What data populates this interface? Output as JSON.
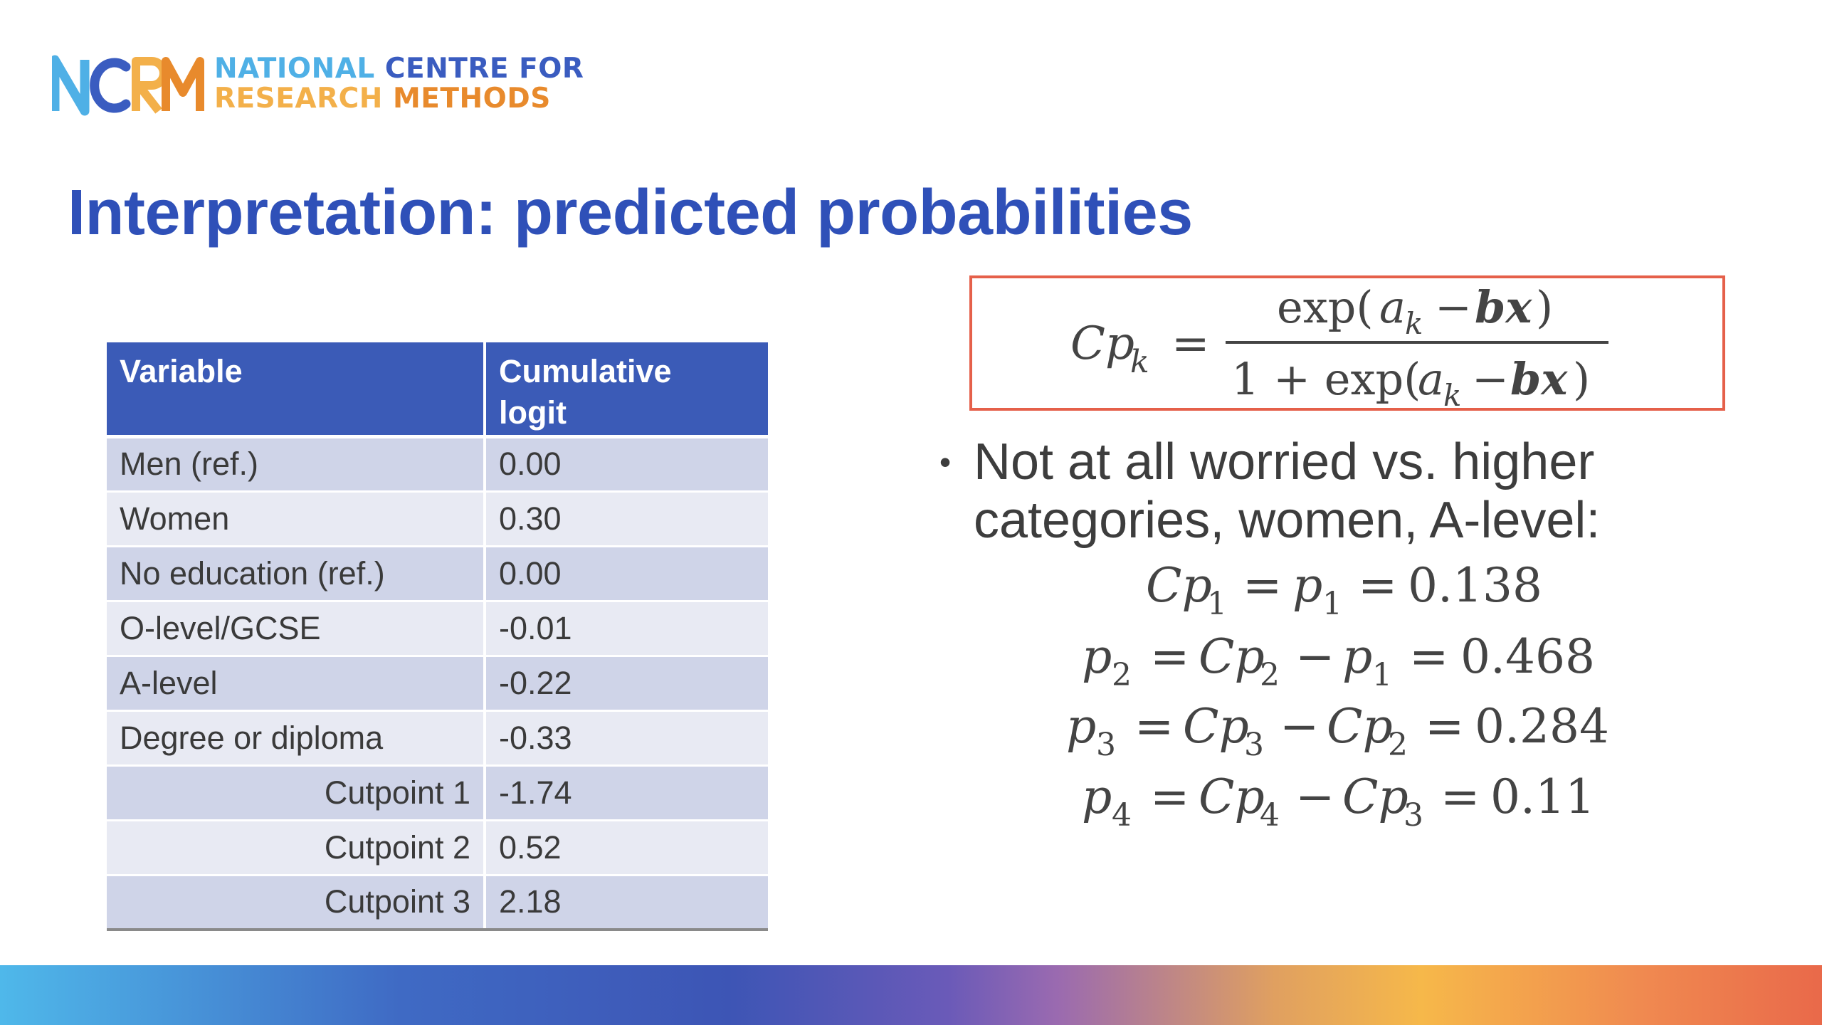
{
  "logo": {
    "mark_text": "NCRM",
    "line1_word1": "NATIONAL",
    "line1_rest": " CENTRE FOR",
    "line2_word1": "RESEARCH",
    "line2_rest": " METHODS"
  },
  "title": "Interpretation: predicted probabilities",
  "table": {
    "headers": [
      "Variable",
      "Cumulative logit"
    ],
    "rows": [
      {
        "variable": "Men (ref.)",
        "logit": "0.00",
        "align": "left"
      },
      {
        "variable": "Women",
        "logit": "0.30",
        "align": "left"
      },
      {
        "variable": "No education (ref.)",
        "logit": "0.00",
        "align": "left"
      },
      {
        "variable": "O-level/GCSE",
        "logit": "-0.01",
        "align": "left"
      },
      {
        "variable": "A-level",
        "logit": "-0.22",
        "align": "left"
      },
      {
        "variable": "Degree or diploma",
        "logit": "-0.33",
        "align": "left"
      },
      {
        "variable": "Cutpoint 1",
        "logit": "-1.74",
        "align": "right"
      },
      {
        "variable": "Cutpoint 2",
        "logit": "0.52",
        "align": "right"
      },
      {
        "variable": "Cutpoint 3",
        "logit": "2.18",
        "align": "right"
      }
    ]
  },
  "formula": {
    "lhs": "Cp",
    "lhs_sub": "k",
    "numerator": "exp(a_k − bx)",
    "denominator": "1 + exp(a_k − bx)"
  },
  "bullet": {
    "dot": "•",
    "text": "Not at all worried vs. higher categories, women, A-level:"
  },
  "equations": [
    {
      "value": "0.138"
    },
    {
      "value": "0.468"
    },
    {
      "value": "0.284"
    },
    {
      "value": "0.11"
    }
  ],
  "colors": {
    "title": "#2f50b8",
    "table_header": "#3b5bb7",
    "row_odd": "#cfd4e8",
    "row_even": "#e8eaf3",
    "formula_border": "#e5604a"
  }
}
